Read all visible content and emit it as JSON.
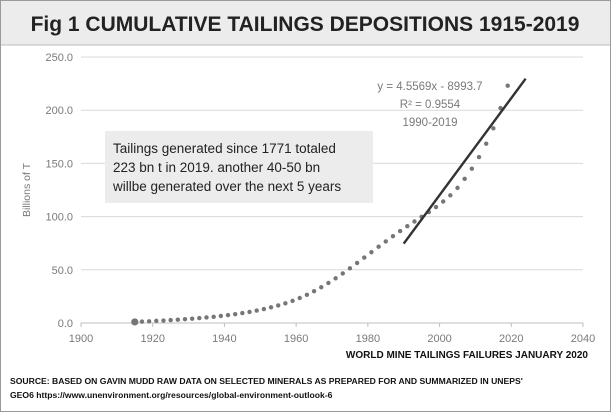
{
  "chart_data": {
    "type": "scatter",
    "title": "Fig 1 CUMULATIVE TAILINGS DEPOSITIONS 1915-2019",
    "ylabel": "Billions of T",
    "xlabel": "",
    "xlim": [
      1900,
      2040
    ],
    "ylim": [
      0,
      250
    ],
    "x_ticks": [
      "1900",
      "1920",
      "1940",
      "1960",
      "1980",
      "2000",
      "2020",
      "2040"
    ],
    "y_ticks": [
      "0.0",
      "50.0",
      "100.0",
      "150.0",
      "200.0",
      "250.0"
    ],
    "grid": "horizontal",
    "colors": {
      "points": "#767676",
      "trend": "#333333"
    },
    "series": [
      {
        "x": [
          1915,
          1917,
          1919,
          1921,
          1923,
          1925,
          1927,
          1929,
          1931,
          1933,
          1935,
          1937,
          1939,
          1941,
          1943,
          1945,
          1947,
          1949,
          1951,
          1953,
          1955,
          1957,
          1959,
          1961,
          1963,
          1965,
          1967,
          1969,
          1971,
          1973,
          1975,
          1977,
          1979,
          1981,
          1983,
          1985,
          1987,
          1989,
          1991,
          1993,
          1995,
          1997,
          1999,
          2001,
          2003,
          2005,
          2007,
          2009,
          2011,
          2013,
          2015,
          2017,
          2019
        ],
        "values": [
          1.0,
          1.3,
          1.6,
          2.0,
          2.3,
          2.7,
          3.1,
          3.6,
          4.1,
          4.6,
          5.2,
          5.8,
          6.6,
          7.4,
          8.3,
          9.3,
          10.4,
          11.7,
          13.1,
          14.7,
          16.5,
          18.5,
          20.8,
          23.5,
          26.5,
          29.9,
          33.6,
          37.6,
          42.0,
          46.6,
          51.4,
          56.4,
          61.5,
          66.6,
          71.7,
          76.7,
          81.6,
          86.4,
          91.0,
          95.4,
          99.8,
          104.3,
          109.0,
          114.2,
          120.0,
          127.0,
          135.5,
          145.0,
          156.0,
          168.5,
          183.0,
          202.0,
          223.0
        ]
      }
    ],
    "trendline": {
      "equation": "y = 4.5569x - 8993.7",
      "r_squared": "R² = 0.9554",
      "range_label": "1990-2019",
      "x_start": 1990,
      "x_end": 2024,
      "y_start": 74.6,
      "y_end": 229.6
    },
    "annotation": {
      "lines": [
        "Tailings generated since 1771 totaled",
        "223 bn t in 2019. another 40-50 bn",
        "willbe generated over  the next 5 years"
      ]
    },
    "sub_note": "WORLD MINE TAILINGS FAILURES JANUARY 2020",
    "source_lines": [
      "SOURCE: BASED ON GAVIN MUDD  RAW DATA ON SELECTED MINERALS AS PREPARED FOR AND SUMMARIZED IN UNEPS'",
      "GEO6 https://www.unenvironment.org/resources/global-environment-outlook-6"
    ]
  }
}
